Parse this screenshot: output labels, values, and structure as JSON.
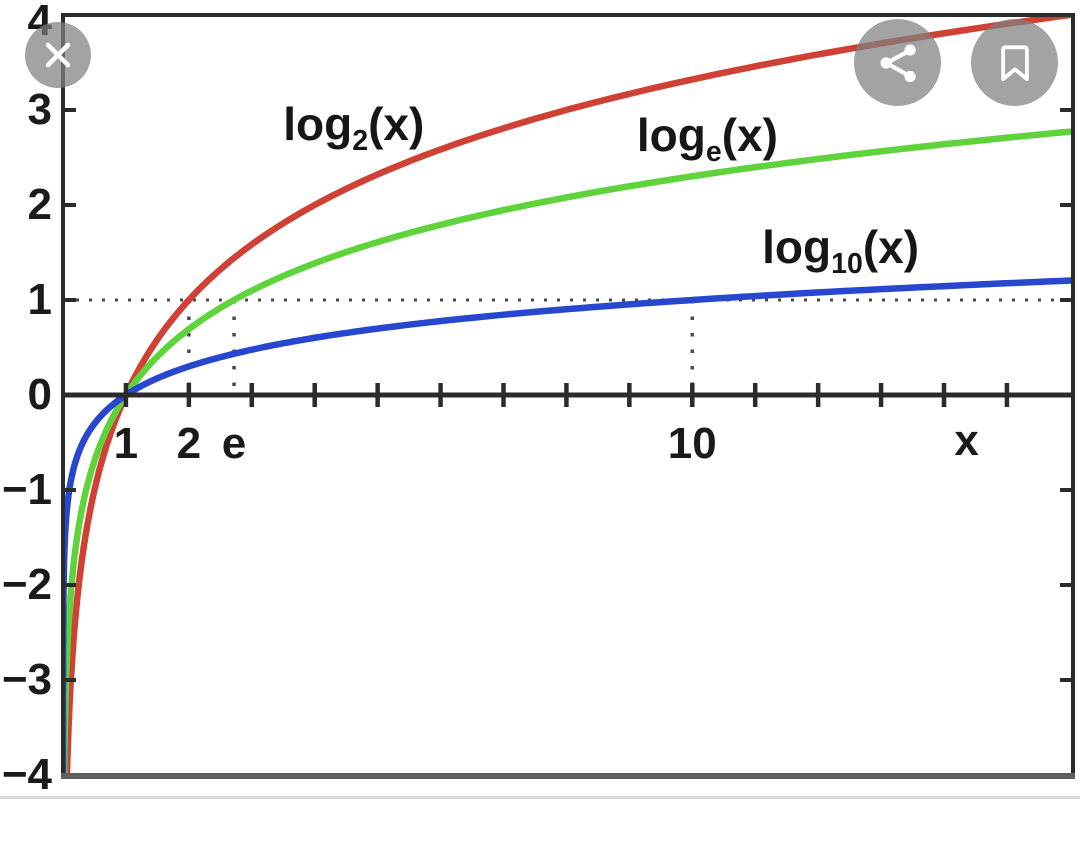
{
  "viewer": {
    "buttons": [
      {
        "id": "close",
        "icon": "close-icon",
        "position": "top-left"
      },
      {
        "id": "share",
        "icon": "share-icon",
        "position": "top-right"
      },
      {
        "id": "bookmark",
        "icon": "bookmark-icon",
        "position": "top-right"
      }
    ],
    "overlay_circle_color": "#9f9f9f",
    "icon_color": "#ffffff",
    "bottom_divider_color": "#d9d9d9"
  },
  "colors": {
    "axis": "#2b2b2b",
    "box_bottom": "#5e5e5e",
    "tick_text": "#1a1a1a",
    "guide_dots": "#4a4a4a",
    "background": "#ffffff"
  },
  "chart_data": {
    "type": "line",
    "title": "",
    "subtitle": "",
    "xlabel": "x",
    "ylabel": "",
    "xlim": [
      0,
      16.05
    ],
    "ylim": [
      -4,
      4
    ],
    "grid": false,
    "legend_position": "inline-curve-labels",
    "x_axis_ticks": [
      1,
      2,
      3,
      4,
      5,
      6,
      7,
      8,
      9,
      10,
      11,
      12,
      13,
      14,
      15
    ],
    "x_tick_labels": [
      {
        "value": 1,
        "label": "1"
      },
      {
        "value": 2,
        "label": "2"
      },
      {
        "value": 2.71828,
        "label": "e"
      },
      {
        "value": 10,
        "label": "10"
      }
    ],
    "xlabel_tick_value": 14.36,
    "y_axis_ticks": [
      3,
      2,
      1,
      -1,
      -2,
      -3
    ],
    "y_tick_labels": [
      {
        "value": 4,
        "label": "4"
      },
      {
        "value": 3,
        "label": "3"
      },
      {
        "value": 2,
        "label": "2"
      },
      {
        "value": 1,
        "label": "1"
      },
      {
        "value": 0,
        "label": "0"
      },
      {
        "value": -1,
        "label": "−1"
      },
      {
        "value": -2,
        "label": "−2"
      },
      {
        "value": -3,
        "label": "−3"
      },
      {
        "value": -4,
        "label": "−4"
      }
    ],
    "series": [
      {
        "name": "log2(x)",
        "base": 2,
        "color": "#cf4134",
        "label": {
          "main": "log",
          "sub": "2",
          "tail": "(x)"
        },
        "label_anchor": {
          "x": 3.5,
          "y": 3.1
        },
        "points": [
          [
            0.0625,
            -4
          ],
          [
            0.125,
            -3
          ],
          [
            0.25,
            -2
          ],
          [
            0.5,
            -1
          ],
          [
            1,
            0
          ],
          [
            2,
            1
          ],
          [
            4,
            2
          ],
          [
            8,
            3
          ],
          [
            16,
            4
          ]
        ]
      },
      {
        "name": "loge(x)",
        "base": 2.71828,
        "color": "#5fd33c",
        "label": {
          "main": "log",
          "sub": "e",
          "tail": "(x)"
        },
        "label_anchor": {
          "x": 9.12,
          "y": 2.98
        },
        "points": [
          [
            0.0183,
            -4
          ],
          [
            0.0498,
            -3
          ],
          [
            0.1353,
            -2
          ],
          [
            0.3679,
            -1
          ],
          [
            1,
            0
          ],
          [
            2.718,
            1
          ],
          [
            7.389,
            2
          ],
          [
            16.05,
            2.78
          ]
        ]
      },
      {
        "name": "log10(x)",
        "base": 10,
        "color": "#2847cf",
        "label": {
          "main": "log",
          "sub": "10",
          "tail": "(x)"
        },
        "label_anchor": {
          "x": 11.11,
          "y": 1.8
        },
        "points": [
          [
            0.0001,
            -4
          ],
          [
            0.001,
            -3
          ],
          [
            0.01,
            -2
          ],
          [
            0.1,
            -1
          ],
          [
            1,
            0
          ],
          [
            10,
            1
          ],
          [
            16.05,
            1.21
          ]
        ]
      }
    ],
    "guides": {
      "horizontal_dotted_at_y": 1,
      "vertical_dotted_at_x": [
        2,
        2.71828,
        10
      ],
      "vertical_dotted_y_range": [
        0,
        1
      ]
    }
  }
}
